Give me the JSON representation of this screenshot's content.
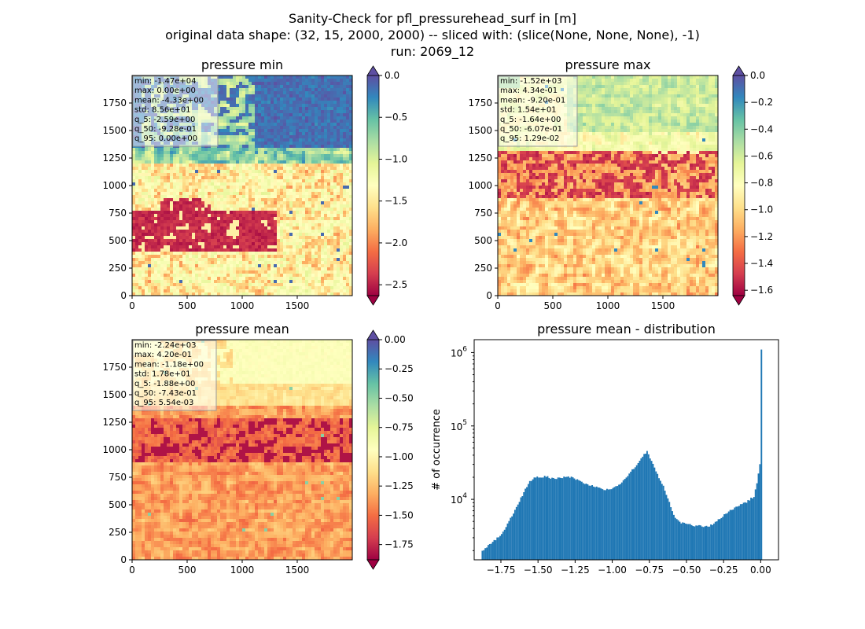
{
  "suptitle": {
    "line1": "Sanity-Check for pfl_pressurehead_surf in [m]",
    "line2": "original data shape: (32, 15, 2000, 2000) -- sliced with: (slice(None, None, None), -1)",
    "line3": "run: 2069_12"
  },
  "chart_data": [
    {
      "type": "heatmap",
      "title": "pressure min",
      "x_ticks": [
        0,
        500,
        1000,
        1500
      ],
      "y_ticks": [
        0,
        250,
        500,
        750,
        1000,
        1250,
        1500,
        1750
      ],
      "xlim": [
        0,
        2000
      ],
      "ylim": [
        0,
        2000
      ],
      "colormap": "Spectral",
      "colorbar": {
        "ticks": [
          "0.0",
          "−0.5",
          "−1.0",
          "−1.5",
          "−2.0",
          "−2.5"
        ],
        "range": [
          -2.63,
          0.0
        ],
        "extend": "both"
      },
      "stats": [
        "min: -1.47e+04",
        "max: 0.00e+00",
        "mean: -4.33e+00",
        "std: 8.56e+01",
        "q_5: -2.59e+00",
        "q_50: -9.28e-01",
        "q_95: 0.00e+00"
      ]
    },
    {
      "type": "heatmap",
      "title": "pressure max",
      "x_ticks": [
        0,
        500,
        1000,
        1500
      ],
      "y_ticks": [
        0,
        250,
        500,
        750,
        1000,
        1250,
        1500,
        1750
      ],
      "xlim": [
        0,
        2000
      ],
      "ylim": [
        0,
        2000
      ],
      "colormap": "Spectral",
      "colorbar": {
        "ticks": [
          "0.0",
          "−0.2",
          "−0.4",
          "−0.6",
          "−0.8",
          "−1.0",
          "−1.2",
          "−1.4",
          "−1.6"
        ],
        "range": [
          -1.64,
          0.0
        ],
        "extend": "both"
      },
      "stats": [
        "min: -1.52e+03",
        "max: 4.34e-01",
        "mean: -9.20e-01",
        "std: 1.54e+01",
        "q_5: -1.64e+00",
        "q_50: -6.07e-01",
        "q_95: 1.29e-02"
      ]
    },
    {
      "type": "heatmap",
      "title": "pressure mean",
      "x_ticks": [
        0,
        500,
        1000,
        1500
      ],
      "y_ticks": [
        0,
        250,
        500,
        750,
        1000,
        1250,
        1500,
        1750
      ],
      "xlim": [
        0,
        2000
      ],
      "ylim": [
        0,
        2000
      ],
      "colormap": "Spectral",
      "colorbar": {
        "ticks": [
          "0.00",
          "−0.25",
          "−0.50",
          "−0.75",
          "−1.00",
          "−1.25",
          "−1.50",
          "−1.75"
        ],
        "range": [
          -1.88,
          0.0
        ],
        "extend": "both"
      },
      "stats": [
        "min: -2.24e+03",
        "max: 4.20e-01",
        "mean: -1.18e+00",
        "std: 1.78e+01",
        "q_5: -1.88e+00",
        "q_50: -7.43e-01",
        "q_95: 5.54e-03"
      ]
    },
    {
      "type": "bar",
      "title": "pressure mean - distribution",
      "ylabel": "# of occurrence",
      "xlabel": "",
      "yscale": "log",
      "xlim": [
        -1.93,
        0.12
      ],
      "ylim": [
        1500,
        1500000
      ],
      "x_ticks": [
        "−1.75",
        "−1.50",
        "−1.25",
        "−1.00",
        "−0.75",
        "−0.50",
        "−0.25",
        "0.00"
      ],
      "x_tick_values": [
        -1.75,
        -1.5,
        -1.25,
        -1.0,
        -0.75,
        -0.5,
        -0.25,
        0.0
      ],
      "y_ticks": [
        {
          "exp": "4",
          "value": 10000
        },
        {
          "exp": "5",
          "value": 100000
        },
        {
          "exp": "6",
          "value": 1000000
        }
      ],
      "bar_color": "#1f77b4",
      "bins": [
        {
          "x": -1.88,
          "y": 2000
        },
        {
          "x": -1.75,
          "y": 3300
        },
        {
          "x": -1.7,
          "y": 5000
        },
        {
          "x": -1.65,
          "y": 7800
        },
        {
          "x": -1.6,
          "y": 12500
        },
        {
          "x": -1.56,
          "y": 17500
        },
        {
          "x": -1.52,
          "y": 20000
        },
        {
          "x": -1.45,
          "y": 20500
        },
        {
          "x": -1.4,
          "y": 19000
        },
        {
          "x": -1.35,
          "y": 19500
        },
        {
          "x": -1.3,
          "y": 20500
        },
        {
          "x": -1.25,
          "y": 19000
        },
        {
          "x": -1.2,
          "y": 17000
        },
        {
          "x": -1.15,
          "y": 15500
        },
        {
          "x": -1.1,
          "y": 14500
        },
        {
          "x": -1.05,
          "y": 13500
        },
        {
          "x": -1.0,
          "y": 14000
        },
        {
          "x": -0.95,
          "y": 16500
        },
        {
          "x": -0.9,
          "y": 21000
        },
        {
          "x": -0.85,
          "y": 28000
        },
        {
          "x": -0.8,
          "y": 38000
        },
        {
          "x": -0.77,
          "y": 46000
        },
        {
          "x": -0.74,
          "y": 33000
        },
        {
          "x": -0.7,
          "y": 22000
        },
        {
          "x": -0.66,
          "y": 15000
        },
        {
          "x": -0.62,
          "y": 9000
        },
        {
          "x": -0.58,
          "y": 5600
        },
        {
          "x": -0.54,
          "y": 4800
        },
        {
          "x": -0.5,
          "y": 4600
        },
        {
          "x": -0.45,
          "y": 4400
        },
        {
          "x": -0.4,
          "y": 4300
        },
        {
          "x": -0.35,
          "y": 4300
        },
        {
          "x": -0.3,
          "y": 5000
        },
        {
          "x": -0.25,
          "y": 6200
        },
        {
          "x": -0.2,
          "y": 7200
        },
        {
          "x": -0.15,
          "y": 8200
        },
        {
          "x": -0.1,
          "y": 9200
        },
        {
          "x": -0.05,
          "y": 11000
        },
        {
          "x": -0.03,
          "y": 17000
        },
        {
          "x": -0.01,
          "y": 30000
        },
        {
          "x": 0.0,
          "y": 1100000
        }
      ]
    }
  ]
}
